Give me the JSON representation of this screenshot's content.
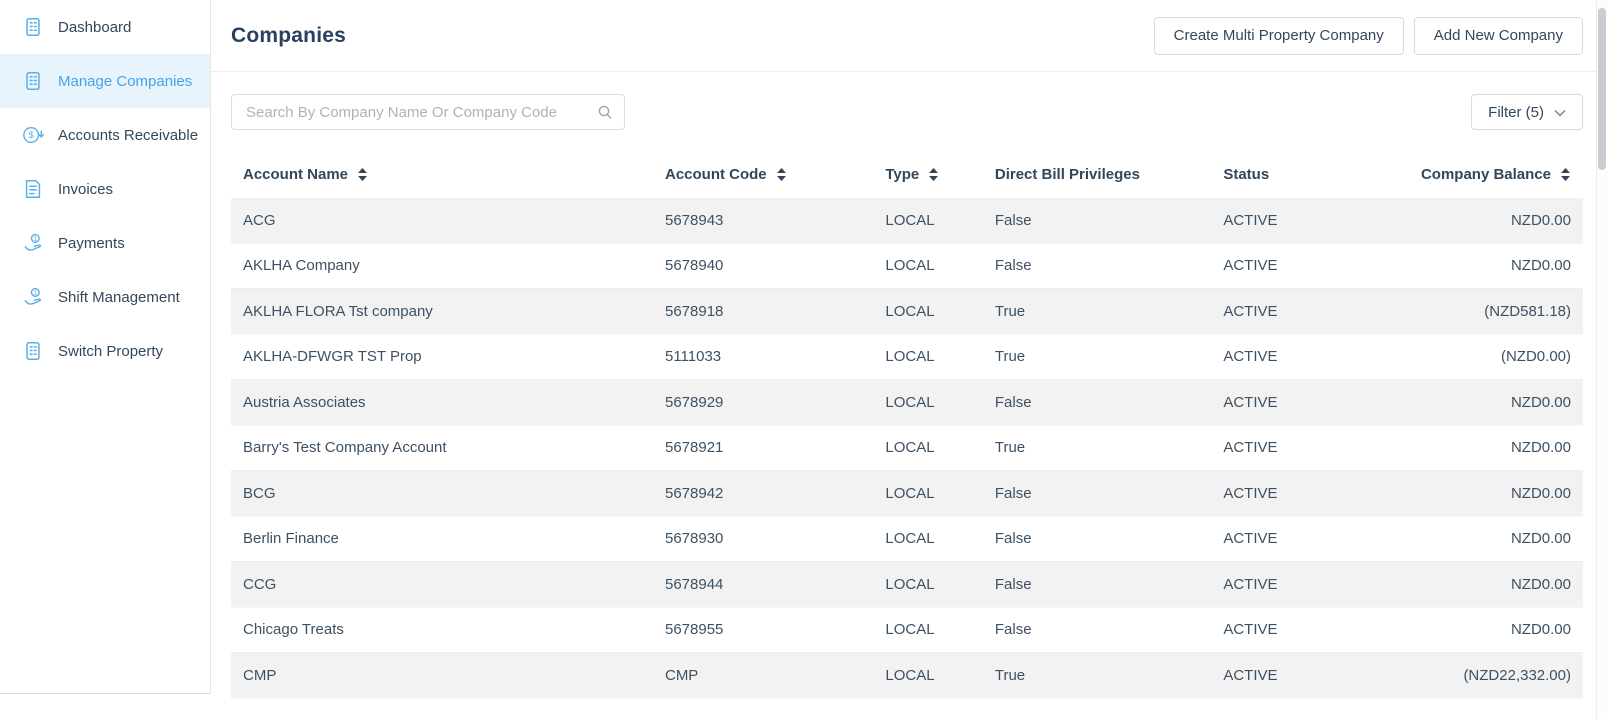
{
  "sidebar": {
    "items": [
      {
        "label": "Dashboard",
        "icon": "building-icon",
        "active": false
      },
      {
        "label": "Manage Companies",
        "icon": "building-icon",
        "active": true
      },
      {
        "label": "Accounts Receivable",
        "icon": "dollar-circle-icon",
        "active": false
      },
      {
        "label": "Invoices",
        "icon": "invoice-icon",
        "active": false
      },
      {
        "label": "Payments",
        "icon": "hand-coin-icon",
        "active": false
      },
      {
        "label": "Shift Management",
        "icon": "hand-coin-icon",
        "active": false
      },
      {
        "label": "Switch Property",
        "icon": "building-icon",
        "active": false
      }
    ]
  },
  "header": {
    "title": "Companies",
    "buttons": [
      {
        "label": "Create Multi Property Company"
      },
      {
        "label": "Add New Company"
      }
    ]
  },
  "toolbar": {
    "search_placeholder": "Search By Company Name Or Company Code",
    "filter_label": "Filter (5)"
  },
  "table": {
    "columns": [
      {
        "label": "Account Name",
        "sortable": true
      },
      {
        "label": "Account Code",
        "sortable": true
      },
      {
        "label": "Type",
        "sortable": true
      },
      {
        "label": "Direct Bill Privileges",
        "sortable": false
      },
      {
        "label": "Status",
        "sortable": false
      },
      {
        "label": "Company Balance",
        "sortable": true
      }
    ],
    "rows": [
      {
        "account_name": "ACG",
        "account_code": "5678943",
        "type": "LOCAL",
        "direct_bill": "False",
        "status": "ACTIVE",
        "balance": "NZD0.00"
      },
      {
        "account_name": "AKLHA Company",
        "account_code": "5678940",
        "type": "LOCAL",
        "direct_bill": "False",
        "status": "ACTIVE",
        "balance": "NZD0.00"
      },
      {
        "account_name": "AKLHA FLORA Tst company",
        "account_code": "5678918",
        "type": "LOCAL",
        "direct_bill": "True",
        "status": "ACTIVE",
        "balance": "(NZD581.18)"
      },
      {
        "account_name": "AKLHA-DFWGR TST Prop",
        "account_code": "5111033",
        "type": "LOCAL",
        "direct_bill": "True",
        "status": "ACTIVE",
        "balance": "(NZD0.00)"
      },
      {
        "account_name": "Austria Associates",
        "account_code": "5678929",
        "type": "LOCAL",
        "direct_bill": "False",
        "status": "ACTIVE",
        "balance": "NZD0.00"
      },
      {
        "account_name": "Barry's Test Company Account",
        "account_code": "5678921",
        "type": "LOCAL",
        "direct_bill": "True",
        "status": "ACTIVE",
        "balance": "NZD0.00"
      },
      {
        "account_name": "BCG",
        "account_code": "5678942",
        "type": "LOCAL",
        "direct_bill": "False",
        "status": "ACTIVE",
        "balance": "NZD0.00"
      },
      {
        "account_name": "Berlin Finance",
        "account_code": "5678930",
        "type": "LOCAL",
        "direct_bill": "False",
        "status": "ACTIVE",
        "balance": "NZD0.00"
      },
      {
        "account_name": "CCG",
        "account_code": "5678944",
        "type": "LOCAL",
        "direct_bill": "False",
        "status": "ACTIVE",
        "balance": "NZD0.00"
      },
      {
        "account_name": "Chicago Treats",
        "account_code": "5678955",
        "type": "LOCAL",
        "direct_bill": "False",
        "status": "ACTIVE",
        "balance": "NZD0.00"
      },
      {
        "account_name": "CMP",
        "account_code": "CMP",
        "type": "LOCAL",
        "direct_bill": "True",
        "status": "ACTIVE",
        "balance": "(NZD22,332.00)"
      }
    ]
  },
  "colors": {
    "accent_blue": "#47a2ea",
    "icon_blue": "#57aee8",
    "selected_bg": "#e8f4fc",
    "text_navy": "#33475b",
    "row_alt_bg": "#f2f2f2",
    "border": "#e4e7ea"
  }
}
